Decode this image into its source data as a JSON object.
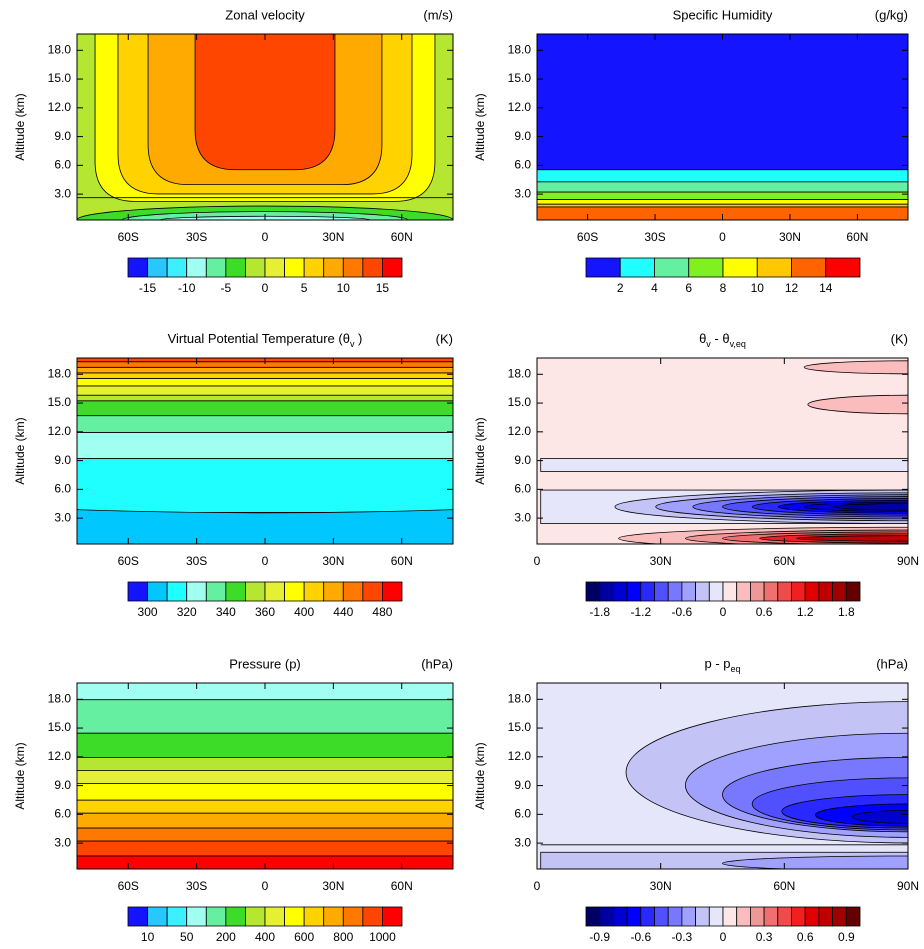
{
  "chart_data": [
    {
      "type": "contour",
      "title": "Zonal velocity",
      "units": "(m/s)",
      "ylabel": "Altitude (km)",
      "xlim": [
        -82.5,
        82.5
      ],
      "xticks": [
        {
          "value": -60,
          "label": "60S"
        },
        {
          "value": -30,
          "label": "30S"
        },
        0,
        {
          "value": 30,
          "label": "30N"
        },
        {
          "value": 60,
          "label": "60N"
        }
      ],
      "ylim": [
        0.3,
        19.7
      ],
      "yticks": [
        {
          "value": 3,
          "label": "3.0"
        },
        {
          "value": 6,
          "label": "6.0"
        },
        {
          "value": 9,
          "label": "9.0"
        },
        {
          "value": 12,
          "label": "12.0"
        },
        {
          "value": 15,
          "label": "15.0"
        },
        {
          "value": 18,
          "label": "18.0"
        }
      ],
      "colorbar": {
        "colors": [
          "#1414ff",
          "#28c8ff",
          "#3cf0ff",
          "#a0fff0",
          "#64f0a0",
          "#3cdc28",
          "#b4e632",
          "#e6f032",
          "#ffff00",
          "#ffd200",
          "#ffaa00",
          "#ff7800",
          "#ff4600",
          "#ff0000"
        ],
        "levels": [
          -15,
          -12.5,
          -10,
          -7.5,
          -5,
          -2.5,
          0,
          2.5,
          5,
          7.5,
          10,
          12.5,
          15
        ],
        "ticks": [
          -15,
          -10,
          -5,
          0,
          5,
          10,
          15
        ]
      }
    },
    {
      "type": "contour",
      "title": "Specific Humidity",
      "units": "(g/kg)",
      "ylabel": "Altitude (km)",
      "xlim": [
        -82.5,
        82.5
      ],
      "xticks": [
        {
          "value": -60,
          "label": "60S"
        },
        {
          "value": -30,
          "label": "30S"
        },
        0,
        {
          "value": 30,
          "label": "30N"
        },
        {
          "value": 60,
          "label": "60N"
        }
      ],
      "ylim": [
        0.3,
        19.7
      ],
      "yticks": [
        {
          "value": 3,
          "label": "3.0"
        },
        {
          "value": 6,
          "label": "6.0"
        },
        {
          "value": 9,
          "label": "9.0"
        },
        {
          "value": 12,
          "label": "12.0"
        },
        {
          "value": 15,
          "label": "15.0"
        },
        {
          "value": 18,
          "label": "18.0"
        }
      ],
      "colorbar": {
        "colors": [
          "#1414ff",
          "#20ffff",
          "#64f0a0",
          "#80f020",
          "#ffff00",
          "#ffc800",
          "#ff6400",
          "#ff0000"
        ],
        "levels": [
          2,
          4,
          6,
          8,
          10,
          12,
          14
        ],
        "ticks": [
          2,
          4,
          6,
          8,
          10,
          12,
          14
        ]
      }
    },
    {
      "type": "contour",
      "title": [
        {
          "text": "Virtual Potential Temperature (θ"
        },
        {
          "text": "v",
          "sub": true
        },
        {
          "text": " )"
        }
      ],
      "units": "(K)",
      "ylabel": "Altitude (km)",
      "xlim": [
        -82.5,
        82.5
      ],
      "xticks": [
        {
          "value": -60,
          "label": "60S"
        },
        {
          "value": -30,
          "label": "30S"
        },
        0,
        {
          "value": 30,
          "label": "30N"
        },
        {
          "value": 60,
          "label": "60N"
        }
      ],
      "ylim": [
        0.3,
        19.7
      ],
      "yticks": [
        {
          "value": 3,
          "label": "3.0"
        },
        {
          "value": 6,
          "label": "6.0"
        },
        {
          "value": 9,
          "label": "9.0"
        },
        {
          "value": 12,
          "label": "12.0"
        },
        {
          "value": 15,
          "label": "15.0"
        },
        {
          "value": 18,
          "label": "18.0"
        }
      ],
      "colorbar": {
        "colors": [
          "#1414ff",
          "#00c8ff",
          "#20ffff",
          "#a0fff0",
          "#64f0a0",
          "#3cdc28",
          "#b4e632",
          "#e6f032",
          "#ffff00",
          "#ffd200",
          "#ffaa00",
          "#ff7800",
          "#ff4600",
          "#ff0000"
        ],
        "levels": [
          300,
          310,
          320,
          330,
          340,
          350,
          360,
          380,
          400,
          420,
          440,
          460,
          480
        ],
        "ticks": [
          300,
          320,
          340,
          360,
          400,
          440,
          480
        ]
      }
    },
    {
      "type": "contour",
      "title": [
        {
          "text": "θ"
        },
        {
          "text": "v",
          "sub": true
        },
        {
          "text": " - θ"
        },
        {
          "text": "v,eq",
          "sub": true
        }
      ],
      "units": "(K)",
      "ylabel": "Altitude (km)",
      "xlim": [
        0,
        90
      ],
      "xticks": [
        0,
        {
          "value": 30,
          "label": "30N"
        },
        {
          "value": 60,
          "label": "60N"
        },
        {
          "value": 90,
          "label": "90N"
        }
      ],
      "ylim": [
        0.3,
        19.7
      ],
      "yticks": [
        {
          "value": 3,
          "label": "3.0"
        },
        {
          "value": 6,
          "label": "6.0"
        },
        {
          "value": 9,
          "label": "9.0"
        },
        {
          "value": 12,
          "label": "12.0"
        },
        {
          "value": 15,
          "label": "15.0"
        },
        {
          "value": 18,
          "label": "18.0"
        }
      ],
      "colorbar": {
        "colors": [
          "#000064",
          "#0000a0",
          "#0000d0",
          "#0000ff",
          "#2828ff",
          "#5050ff",
          "#7878ff",
          "#a0a0ff",
          "#c3c3f5",
          "#e6e6fa",
          "#fde6e6",
          "#fabcbc",
          "#f09898",
          "#f07070",
          "#f04a4a",
          "#f02020",
          "#e00000",
          "#c00000",
          "#a00000",
          "#640000"
        ],
        "levels": [
          -1.8,
          -1.6,
          -1.4,
          -1.2,
          -1,
          -0.8,
          -0.6,
          -0.4,
          -0.2,
          0,
          0.2,
          0.4,
          0.6,
          0.8,
          1,
          1.2,
          1.4,
          1.6,
          1.8
        ],
        "ticks": [
          -1.8,
          -1.2,
          -0.6,
          0,
          0.6,
          1.2,
          1.8
        ]
      }
    },
    {
      "type": "contour",
      "title": "Pressure (p)",
      "units": "(hPa)",
      "ylabel": "Altitude (km)",
      "xlim": [
        -82.5,
        82.5
      ],
      "xticks": [
        {
          "value": -60,
          "label": "60S"
        },
        {
          "value": -30,
          "label": "30S"
        },
        0,
        {
          "value": 30,
          "label": "30N"
        },
        {
          "value": 60,
          "label": "60N"
        }
      ],
      "ylim": [
        0.3,
        19.7
      ],
      "yticks": [
        {
          "value": 3,
          "label": "3.0"
        },
        {
          "value": 6,
          "label": "6.0"
        },
        {
          "value": 9,
          "label": "9.0"
        },
        {
          "value": 12,
          "label": "12.0"
        },
        {
          "value": 15,
          "label": "15.0"
        },
        {
          "value": 18,
          "label": "18.0"
        }
      ],
      "colorbar": {
        "colors": [
          "#1414ff",
          "#28c8ff",
          "#3cf0ff",
          "#a0fff0",
          "#64f0a0",
          "#3cdc28",
          "#b4e632",
          "#e6f032",
          "#ffff00",
          "#ffd200",
          "#ffaa00",
          "#ff7800",
          "#ff4600",
          "#ff0000"
        ],
        "levels": [
          10,
          25,
          50,
          100,
          200,
          300,
          400,
          500,
          600,
          700,
          800,
          900,
          1000
        ],
        "ticks": [
          10,
          50,
          200,
          400,
          600,
          800,
          1000
        ]
      }
    },
    {
      "type": "contour",
      "title": [
        {
          "text": "p - p"
        },
        {
          "text": "eq",
          "sub": true
        }
      ],
      "units": "(hPa)",
      "ylabel": "Altitude (km)",
      "xlim": [
        0,
        90
      ],
      "xticks": [
        0,
        {
          "value": 30,
          "label": "30N"
        },
        {
          "value": 60,
          "label": "60N"
        },
        {
          "value": 90,
          "label": "90N"
        }
      ],
      "ylim": [
        0.3,
        19.7
      ],
      "yticks": [
        {
          "value": 3,
          "label": "3.0"
        },
        {
          "value": 6,
          "label": "6.0"
        },
        {
          "value": 9,
          "label": "9.0"
        },
        {
          "value": 12,
          "label": "12.0"
        },
        {
          "value": 15,
          "label": "15.0"
        },
        {
          "value": 18,
          "label": "18.0"
        }
      ],
      "colorbar": {
        "colors": [
          "#000064",
          "#0000a0",
          "#0000d0",
          "#0000ff",
          "#2828ff",
          "#5050ff",
          "#7878ff",
          "#a0a0ff",
          "#c3c3f5",
          "#e6e6fa",
          "#fde6e6",
          "#fabcbc",
          "#f09898",
          "#f07070",
          "#f04a4a",
          "#f02020",
          "#e00000",
          "#c00000",
          "#a00000",
          "#640000"
        ],
        "levels": [
          -0.9,
          -0.8,
          -0.7,
          -0.6,
          -0.5,
          -0.4,
          -0.3,
          -0.2,
          -0.1,
          0,
          0.1,
          0.2,
          0.3,
          0.4,
          0.5,
          0.6,
          0.7,
          0.8,
          0.9
        ],
        "ticks": [
          -0.9,
          -0.6,
          -0.3,
          0,
          0.3,
          0.6,
          0.9
        ]
      }
    }
  ]
}
